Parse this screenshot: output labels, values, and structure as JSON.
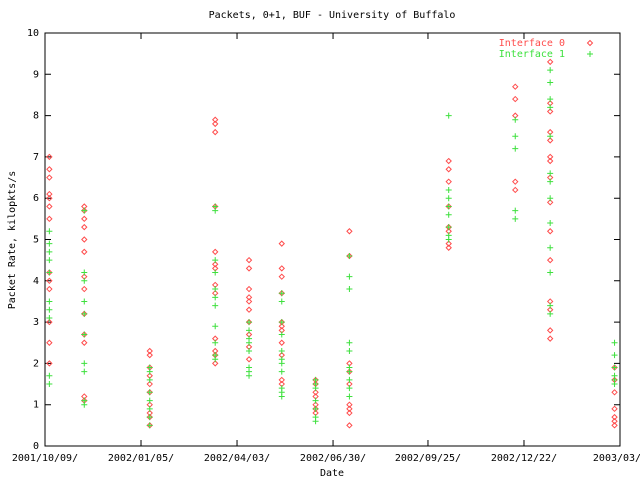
{
  "chart_data": {
    "type": "scatter",
    "title": "Packets, 0+1, BUF - University of Buffalo",
    "x_label": "Date",
    "y_label": "Packet Rate, kilopkts/s",
    "xlim": [
      "2001-10-09",
      "2003-03-20"
    ],
    "xticks": [
      {
        "value": "2001-10-09",
        "label": "2001/10/09/"
      },
      {
        "value": "2002-01-05",
        "label": "2002/01/05/"
      },
      {
        "value": "2002-04-03",
        "label": "2002/04/03/"
      },
      {
        "value": "2002-06-30",
        "label": "2002/06/30/"
      },
      {
        "value": "2002-09-25",
        "label": "2002/09/25/"
      },
      {
        "value": "2002-12-22",
        "label": "2002/12/22/"
      },
      {
        "value": "2003-03-20",
        "label": "2003/03/2"
      }
    ],
    "ylim": [
      0,
      10
    ],
    "yticks": [
      0,
      1,
      2,
      3,
      4,
      5,
      6,
      7,
      8,
      9,
      10
    ],
    "legend": "top-right",
    "series": [
      {
        "name": "Interface 0",
        "color": "#ff4c4c",
        "marker": "diamond",
        "x": [
          "2001-10-13",
          "2001-10-13",
          "2001-10-13",
          "2001-10-13",
          "2001-10-13",
          "2001-10-13",
          "2001-10-13",
          "2001-10-13",
          "2001-10-13",
          "2001-10-13",
          "2001-10-13",
          "2001-10-13",
          "2001-10-13",
          "2001-11-14",
          "2001-11-14",
          "2001-11-14",
          "2001-11-14",
          "2001-11-14",
          "2001-11-14",
          "2001-11-14",
          "2001-11-14",
          "2001-11-14",
          "2001-11-14",
          "2001-11-14",
          "2001-11-14",
          "2001-11-14",
          "2002-01-13",
          "2002-01-13",
          "2002-01-13",
          "2002-01-13",
          "2002-01-13",
          "2002-01-13",
          "2002-01-13",
          "2002-01-13",
          "2002-01-13",
          "2002-01-13",
          "2002-03-14",
          "2002-03-14",
          "2002-03-14",
          "2002-03-14",
          "2002-03-14",
          "2002-03-14",
          "2002-03-14",
          "2002-03-14",
          "2002-03-14",
          "2002-03-14",
          "2002-03-14",
          "2002-03-14",
          "2002-03-14",
          "2002-04-14",
          "2002-04-14",
          "2002-04-14",
          "2002-04-14",
          "2002-04-14",
          "2002-04-14",
          "2002-04-14",
          "2002-04-14",
          "2002-04-14",
          "2002-04-14",
          "2002-05-14",
          "2002-05-14",
          "2002-05-14",
          "2002-05-14",
          "2002-05-14",
          "2002-05-14",
          "2002-05-14",
          "2002-05-14",
          "2002-05-14",
          "2002-05-14",
          "2002-05-14",
          "2002-06-14",
          "2002-06-14",
          "2002-06-14",
          "2002-06-14",
          "2002-06-14",
          "2002-06-14",
          "2002-06-14",
          "2002-07-15",
          "2002-07-15",
          "2002-07-15",
          "2002-07-15",
          "2002-07-15",
          "2002-07-15",
          "2002-07-15",
          "2002-07-15",
          "2002-07-15",
          "2002-10-14",
          "2002-10-14",
          "2002-10-14",
          "2002-10-14",
          "2002-10-14",
          "2002-10-14",
          "2002-10-14",
          "2002-10-14",
          "2002-12-14",
          "2002-12-14",
          "2002-12-14",
          "2002-12-14",
          "2002-12-14",
          "2003-01-15",
          "2003-01-15",
          "2003-01-15",
          "2003-01-15",
          "2003-01-15",
          "2003-01-15",
          "2003-01-15",
          "2003-01-15",
          "2003-01-15",
          "2003-01-15",
          "2003-01-15",
          "2003-01-15",
          "2003-01-15",
          "2003-01-15",
          "2003-01-15",
          "2003-03-15",
          "2003-03-15",
          "2003-03-15",
          "2003-03-15",
          "2003-03-15",
          "2003-03-15",
          "2003-03-15"
        ],
        "values": [
          7.0,
          6.7,
          6.5,
          6.1,
          6.0,
          5.8,
          5.5,
          4.2,
          4.0,
          3.8,
          3.0,
          2.5,
          2.0,
          5.8,
          5.7,
          5.5,
          5.3,
          5.0,
          4.7,
          4.1,
          3.8,
          3.2,
          2.7,
          2.5,
          1.2,
          1.1,
          2.3,
          2.2,
          1.9,
          1.7,
          1.5,
          1.3,
          1.0,
          0.8,
          0.7,
          0.5,
          7.9,
          7.8,
          7.6,
          5.8,
          4.7,
          4.4,
          4.3,
          3.9,
          3.7,
          2.6,
          2.3,
          2.2,
          2.0,
          4.5,
          4.3,
          3.8,
          3.6,
          3.5,
          3.3,
          3.0,
          2.7,
          2.4,
          2.1,
          4.9,
          4.3,
          4.1,
          3.7,
          3.0,
          2.9,
          2.8,
          2.5,
          2.2,
          1.6,
          1.5,
          1.6,
          1.5,
          1.3,
          1.2,
          1.0,
          0.9,
          0.8,
          5.2,
          4.6,
          2.0,
          1.8,
          1.5,
          1.0,
          0.9,
          0.8,
          0.5,
          6.9,
          6.7,
          6.4,
          5.8,
          5.3,
          5.2,
          4.9,
          4.8,
          8.7,
          8.4,
          8.0,
          6.4,
          6.2,
          9.3,
          8.3,
          8.1,
          7.6,
          7.4,
          7.0,
          6.9,
          6.5,
          5.9,
          5.2,
          4.5,
          3.5,
          3.3,
          2.8,
          2.6,
          1.9,
          1.6,
          1.3,
          0.9,
          0.7,
          0.6,
          0.5
        ]
      },
      {
        "name": "Interface 1",
        "color": "#3ee03e",
        "marker": "plus",
        "x": [
          "2001-10-13",
          "2001-10-13",
          "2001-10-13",
          "2001-10-13",
          "2001-10-13",
          "2001-10-13",
          "2001-10-13",
          "2001-10-13",
          "2001-10-13",
          "2001-10-13",
          "2001-11-14",
          "2001-11-14",
          "2001-11-14",
          "2001-11-14",
          "2001-11-14",
          "2001-11-14",
          "2001-11-14",
          "2001-11-14",
          "2001-11-14",
          "2001-11-14",
          "2002-01-13",
          "2002-01-13",
          "2002-01-13",
          "2002-01-13",
          "2002-01-13",
          "2002-01-13",
          "2002-01-13",
          "2002-01-13",
          "2002-03-14",
          "2002-03-14",
          "2002-03-14",
          "2002-03-14",
          "2002-03-14",
          "2002-03-14",
          "2002-03-14",
          "2002-03-14",
          "2002-03-14",
          "2002-03-14",
          "2002-03-14",
          "2002-04-14",
          "2002-04-14",
          "2002-04-14",
          "2002-04-14",
          "2002-04-14",
          "2002-04-14",
          "2002-04-14",
          "2002-04-14",
          "2002-05-14",
          "2002-05-14",
          "2002-05-14",
          "2002-05-14",
          "2002-05-14",
          "2002-05-14",
          "2002-05-14",
          "2002-05-14",
          "2002-05-14",
          "2002-05-14",
          "2002-05-14",
          "2002-06-14",
          "2002-06-14",
          "2002-06-14",
          "2002-06-14",
          "2002-06-14",
          "2002-06-14",
          "2002-06-14",
          "2002-07-15",
          "2002-07-15",
          "2002-07-15",
          "2002-07-15",
          "2002-07-15",
          "2002-07-15",
          "2002-07-15",
          "2002-07-15",
          "2002-07-15",
          "2002-07-15",
          "2002-10-14",
          "2002-10-14",
          "2002-10-14",
          "2002-10-14",
          "2002-10-14",
          "2002-10-14",
          "2002-10-14",
          "2002-10-14",
          "2002-12-14",
          "2002-12-14",
          "2002-12-14",
          "2002-12-14",
          "2002-12-14",
          "2003-01-15",
          "2003-01-15",
          "2003-01-15",
          "2003-01-15",
          "2003-01-15",
          "2003-01-15",
          "2003-01-15",
          "2003-01-15",
          "2003-01-15",
          "2003-01-15",
          "2003-01-15",
          "2003-01-15",
          "2003-01-15",
          "2003-03-15",
          "2003-03-15",
          "2003-03-15",
          "2003-03-15",
          "2003-03-15",
          "2003-03-15"
        ],
        "values": [
          5.2,
          4.9,
          4.7,
          4.5,
          4.2,
          3.5,
          3.3,
          3.1,
          1.7,
          1.5,
          5.7,
          4.2,
          4.0,
          3.5,
          3.2,
          2.7,
          2.0,
          1.8,
          1.1,
          1.0,
          1.9,
          1.8,
          1.6,
          1.3,
          1.1,
          0.9,
          0.7,
          0.5,
          5.8,
          5.7,
          4.5,
          4.2,
          3.8,
          3.6,
          3.4,
          2.9,
          2.5,
          2.2,
          2.1,
          3.0,
          2.8,
          2.6,
          2.5,
          2.3,
          1.9,
          1.8,
          1.7,
          3.7,
          3.5,
          3.0,
          2.7,
          2.3,
          2.1,
          2.0,
          1.8,
          1.4,
          1.3,
          1.2,
          1.6,
          1.5,
          1.4,
          1.1,
          0.9,
          0.7,
          0.6,
          4.6,
          4.1,
          3.8,
          2.5,
          2.3,
          1.9,
          1.8,
          1.6,
          1.4,
          1.2,
          8.0,
          6.2,
          6.0,
          5.8,
          5.6,
          5.3,
          5.1,
          5.0,
          7.9,
          7.5,
          7.2,
          5.7,
          5.5,
          9.1,
          8.8,
          8.4,
          8.2,
          7.5,
          6.6,
          6.4,
          6.0,
          5.4,
          4.8,
          4.2,
          3.4,
          3.2,
          2.5,
          2.2,
          1.9,
          1.7,
          1.6,
          1.5
        ]
      }
    ]
  }
}
